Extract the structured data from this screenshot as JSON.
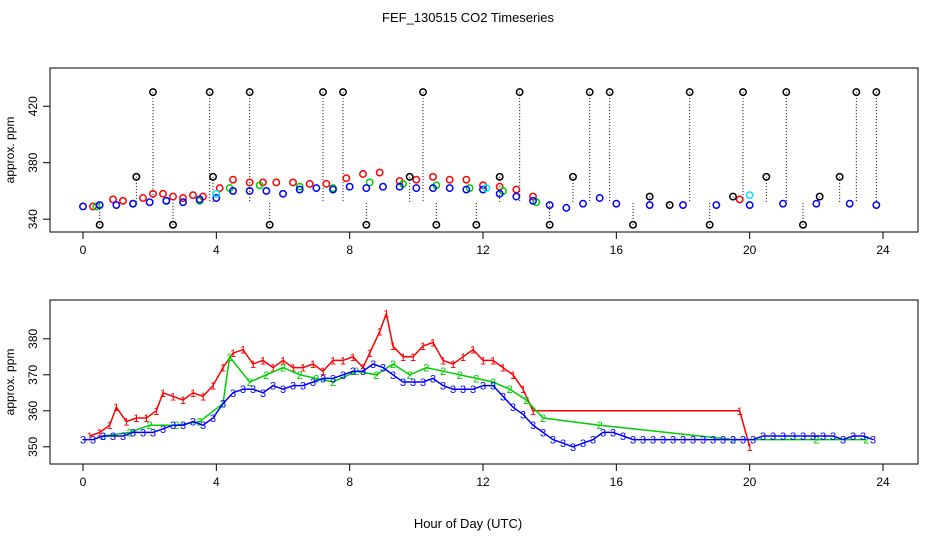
{
  "figure": {
    "title": "FEF_130515  CO2 Timeseries",
    "xlabel": "Hour of Day (UTC)"
  },
  "colors": {
    "series_1": "#ff0000",
    "series_2": "#00cd00",
    "series_3": "#0000ff",
    "cyan_points": "#00e5ee",
    "outliers": "#000000"
  },
  "chart_data": [
    {
      "type": "scatter",
      "title": "",
      "xlabel": "",
      "ylabel": "approx. ppm",
      "xlim": [
        0,
        24
      ],
      "ylim": [
        338,
        440
      ],
      "xticks": [
        0,
        4,
        8,
        12,
        16,
        20,
        24
      ],
      "yticks": [
        340,
        380,
        420
      ],
      "grid": false,
      "legend": "none",
      "series": [
        {
          "color": "#ff0000",
          "marker": "circle",
          "x": [
            0.3,
            0.9,
            1.2,
            1.8,
            2.1,
            2.4,
            2.7,
            3.0,
            3.3,
            3.6,
            4.1,
            4.5,
            5.0,
            5.4,
            5.8,
            6.3,
            6.8,
            7.3,
            7.9,
            8.4,
            8.9,
            9.5,
            10.0,
            10.5,
            11.0,
            11.5,
            12.0,
            12.5,
            13.0,
            13.5,
            19.7
          ],
          "y": [
            349,
            354,
            353,
            355,
            358,
            358,
            356,
            355,
            357,
            356,
            362,
            368,
            366,
            366,
            366,
            366,
            365,
            365,
            369,
            372,
            373,
            367,
            368,
            370,
            368,
            368,
            364,
            363,
            361,
            356,
            354
          ]
        },
        {
          "color": "#00cd00",
          "marker": "circle",
          "x": [
            0.4,
            1.5,
            2.5,
            3.5,
            4.4,
            5.3,
            6.5,
            7.5,
            8.6,
            9.6,
            10.6,
            11.6,
            12.6,
            13.6
          ],
          "y": [
            349,
            351,
            353,
            353,
            362,
            364,
            363,
            362,
            366,
            365,
            364,
            362,
            360,
            352
          ]
        },
        {
          "color": "#0000ff",
          "marker": "circle",
          "x": [
            0.0,
            0.5,
            1.0,
            1.5,
            2.0,
            2.5,
            3.0,
            3.5,
            4.0,
            4.5,
            5.0,
            5.5,
            6.0,
            6.5,
            7.0,
            7.5,
            8.0,
            8.5,
            9.0,
            9.5,
            10.0,
            10.5,
            11.0,
            11.5,
            12.0,
            12.5,
            13.0,
            13.5,
            14.0,
            14.5,
            15.0,
            15.5,
            16.0,
            17.0,
            18.0,
            19.0,
            20.0,
            21.0,
            22.0,
            23.0,
            23.8
          ],
          "y": [
            349,
            350,
            350,
            351,
            352,
            353,
            352,
            354,
            355,
            360,
            360,
            360,
            358,
            361,
            362,
            361,
            363,
            362,
            363,
            363,
            362,
            362,
            362,
            361,
            361,
            358,
            356,
            353,
            350,
            348,
            351,
            355,
            351,
            350,
            350,
            350,
            350,
            351,
            351,
            351,
            350
          ]
        },
        {
          "color": "#00e5ee",
          "marker": "circle",
          "x": [
            4.0,
            12.1,
            20.0
          ],
          "y": [
            358,
            362,
            357
          ]
        },
        {
          "color": "#000000",
          "marker": "circle",
          "x": [
            0.5,
            1.6,
            2.1,
            2.7,
            3.8,
            3.9,
            5.0,
            5.6,
            7.2,
            7.8,
            8.5,
            9.8,
            10.2,
            10.6,
            11.8,
            12.5,
            13.1,
            14.0,
            14.7,
            15.2,
            15.8,
            16.5,
            17.0,
            17.6,
            18.2,
            18.8,
            19.5,
            19.8,
            20.5,
            21.1,
            21.6,
            22.1,
            22.7,
            23.2,
            23.8
          ],
          "y": [
            336,
            370,
            430,
            336,
            430,
            370,
            430,
            336,
            430,
            430,
            336,
            370,
            430,
            336,
            336,
            370,
            430,
            336,
            370,
            430,
            430,
            336,
            356,
            350,
            430,
            336,
            356,
            430,
            370,
            430,
            336,
            356,
            370,
            430,
            430
          ]
        }
      ]
    },
    {
      "type": "scatter",
      "title": "",
      "xlabel": "Hour of Day (UTC)",
      "ylabel": "approx. ppm",
      "xlim": [
        0,
        24
      ],
      "ylim": [
        348,
        388
      ],
      "xticks": [
        0,
        4,
        8,
        12,
        16,
        20,
        24
      ],
      "yticks": [
        350,
        360,
        370,
        380
      ],
      "grid": false,
      "legend": "none",
      "series": [
        {
          "color": "#ff0000",
          "marker": "text-1",
          "x": [
            0.2,
            0.5,
            0.8,
            1.0,
            1.3,
            1.6,
            1.9,
            2.2,
            2.4,
            2.7,
            3.0,
            3.3,
            3.6,
            3.9,
            4.2,
            4.5,
            4.8,
            5.1,
            5.4,
            5.7,
            6.0,
            6.3,
            6.6,
            6.9,
            7.2,
            7.5,
            7.8,
            8.1,
            8.4,
            8.6,
            8.9,
            9.1,
            9.3,
            9.6,
            9.9,
            10.2,
            10.5,
            10.8,
            11.1,
            11.4,
            11.7,
            12.0,
            12.3,
            12.6,
            12.9,
            13.2,
            13.5,
            19.7,
            20.0
          ],
          "y": [
            353,
            354,
            356,
            361,
            357,
            358,
            358,
            360,
            365,
            364,
            363,
            365,
            364,
            367,
            372,
            376,
            377,
            373,
            374,
            372,
            374,
            372,
            372,
            373,
            371,
            374,
            374,
            375,
            372,
            376,
            382,
            387,
            378,
            375,
            375,
            378,
            379,
            374,
            373,
            375,
            377,
            374,
            374,
            372,
            370,
            366,
            360,
            360,
            350
          ]
        },
        {
          "color": "#00cd00",
          "marker": "text-2",
          "x": [
            0.6,
            1.4,
            2.0,
            2.8,
            3.5,
            4.2,
            4.4,
            5.0,
            5.5,
            6.0,
            6.5,
            7.0,
            7.5,
            8.2,
            8.8,
            9.3,
            9.8,
            10.3,
            10.8,
            11.3,
            11.8,
            12.3,
            12.8,
            13.3,
            13.8,
            15.5,
            19.5,
            22.0,
            23.5
          ],
          "y": [
            353,
            354,
            356,
            356,
            357,
            362,
            375,
            368,
            370,
            372,
            370,
            369,
            368,
            371,
            370,
            373,
            370,
            372,
            371,
            370,
            369,
            368,
            366,
            363,
            358,
            356,
            352,
            352,
            352
          ]
        },
        {
          "color": "#0000ff",
          "marker": "text-3",
          "x": [
            0.0,
            0.3,
            0.6,
            0.9,
            1.2,
            1.5,
            1.8,
            2.1,
            2.4,
            2.7,
            3.0,
            3.3,
            3.6,
            3.9,
            4.2,
            4.5,
            4.8,
            5.1,
            5.4,
            5.7,
            6.0,
            6.3,
            6.6,
            6.9,
            7.2,
            7.5,
            7.8,
            8.1,
            8.4,
            8.7,
            9.0,
            9.3,
            9.6,
            9.9,
            10.2,
            10.5,
            10.8,
            11.1,
            11.4,
            11.7,
            12.0,
            12.3,
            12.6,
            12.9,
            13.2,
            13.5,
            13.8,
            14.1,
            14.4,
            14.7,
            15.0,
            15.3,
            15.6,
            15.9,
            16.2,
            16.5,
            16.8,
            17.1,
            17.4,
            17.7,
            18.0,
            18.3,
            18.6,
            18.9,
            19.2,
            19.5,
            19.8,
            20.1,
            20.4,
            20.7,
            21.0,
            21.3,
            21.6,
            21.9,
            22.2,
            22.5,
            22.8,
            23.1,
            23.4,
            23.7
          ],
          "y": [
            352,
            352,
            353,
            353,
            353,
            354,
            354,
            354,
            355,
            356,
            356,
            357,
            356,
            358,
            362,
            365,
            366,
            366,
            365,
            367,
            366,
            367,
            367,
            368,
            369,
            369,
            370,
            371,
            371,
            373,
            372,
            370,
            368,
            368,
            368,
            369,
            367,
            366,
            366,
            366,
            367,
            367,
            364,
            361,
            359,
            356,
            354,
            352,
            351,
            350,
            351,
            352,
            354,
            354,
            353,
            352,
            352,
            352,
            352,
            352,
            352,
            352,
            352,
            352,
            352,
            352,
            352,
            352,
            353,
            353,
            353,
            353,
            353,
            353,
            353,
            353,
            352,
            353,
            353,
            352
          ]
        }
      ]
    }
  ]
}
